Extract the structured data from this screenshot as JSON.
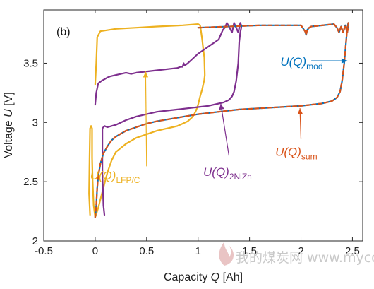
{
  "chart_data": {
    "type": "line",
    "panel_label": "(b)",
    "xlabel": {
      "prefix": "Capacity ",
      "symbol": "Q",
      "unit": " [Ah]"
    },
    "ylabel": {
      "prefix": "Voltage ",
      "symbol": "U",
      "unit": " [V]"
    },
    "xlim": [
      -0.5,
      2.6
    ],
    "ylim": [
      2,
      3.95
    ],
    "xticks": [
      -0.5,
      0,
      0.5,
      1,
      1.5,
      2,
      2.5
    ],
    "xtick_labels": [
      "-0.5",
      "0",
      "0.5",
      "1",
      "1.5",
      "2",
      "2.5"
    ],
    "yticks": [
      2,
      2.5,
      3,
      3.5
    ],
    "ytick_labels": [
      "2",
      "2.5",
      "3",
      "3.5"
    ],
    "grid": false,
    "series": [
      {
        "name_main": "U(Q)",
        "name_sub": "LFP/C",
        "color": "#edb120",
        "dash": false,
        "x": [
          -0.05,
          -0.06,
          -0.055,
          -0.05,
          -0.04,
          -0.03,
          -0.03,
          -0.025,
          -0.015,
          0.0,
          0.03,
          0.08,
          0.12,
          0.16,
          0.2,
          0.3,
          0.4,
          0.5,
          0.6,
          0.7,
          0.75,
          0.8,
          0.85,
          0.9,
          0.95,
          0.98,
          1.0,
          1.02,
          1.04,
          1.05,
          1.06,
          1.065,
          1.06,
          1.05,
          1.04,
          1.03,
          1.02,
          1.0,
          0.85,
          0.6,
          0.4,
          0.2,
          0.05,
          0.02,
          0.01,
          0.0
        ],
        "y": [
          2.22,
          2.4,
          2.7,
          2.95,
          2.97,
          2.95,
          2.7,
          2.5,
          2.3,
          2.2,
          2.28,
          2.45,
          2.58,
          2.68,
          2.75,
          2.82,
          2.87,
          2.9,
          2.93,
          2.95,
          2.96,
          2.97,
          2.99,
          3.01,
          3.05,
          3.1,
          3.15,
          3.22,
          3.28,
          3.32,
          3.36,
          3.4,
          3.55,
          3.62,
          3.7,
          3.76,
          3.82,
          3.83,
          3.82,
          3.81,
          3.8,
          3.79,
          3.77,
          3.72,
          3.5,
          3.32
        ]
      },
      {
        "name_main": "U(Q)",
        "name_sub": "2NiZn",
        "color": "#7e2f8e",
        "dash": false,
        "x": [
          0.09,
          0.08,
          0.075,
          0.07,
          0.07,
          0.07,
          0.09,
          0.12,
          0.16,
          0.2,
          0.3,
          0.4,
          0.5,
          0.6,
          0.7,
          0.8,
          0.9,
          1.0,
          1.1,
          1.2,
          1.25,
          1.3,
          1.33,
          1.35,
          1.37,
          1.39,
          1.4,
          1.41,
          1.42,
          1.42,
          1.41,
          1.39,
          1.37,
          1.35,
          1.33,
          1.3,
          1.28,
          1.26,
          1.24,
          1.22,
          1.2,
          1.0,
          0.9,
          0.87,
          0.86,
          0.85,
          0.83,
          0.8,
          0.6,
          0.4,
          0.35,
          0.3,
          0.2,
          0.15,
          0.12,
          0.1,
          0.06,
          0.03,
          0.01,
          0.0
        ],
        "y": [
          2.22,
          2.3,
          2.45,
          2.55,
          2.7,
          2.95,
          2.97,
          2.96,
          2.97,
          2.98,
          3.02,
          3.05,
          3.07,
          3.09,
          3.1,
          3.11,
          3.12,
          3.13,
          3.14,
          3.16,
          3.17,
          3.19,
          3.22,
          3.26,
          3.35,
          3.5,
          3.68,
          3.76,
          3.8,
          3.82,
          3.84,
          3.76,
          3.8,
          3.84,
          3.76,
          3.81,
          3.84,
          3.8,
          3.78,
          3.74,
          3.7,
          3.58,
          3.5,
          3.48,
          3.5,
          3.47,
          3.47,
          3.46,
          3.44,
          3.42,
          3.41,
          3.42,
          3.4,
          3.39,
          3.38,
          3.37,
          3.35,
          3.33,
          3.25,
          3.15
        ]
      },
      {
        "name_main": "U(Q)",
        "name_sub": "mod",
        "color": "#0072bd",
        "dash": false,
        "x": [
          0.0,
          0.01,
          0.02,
          0.03,
          0.05,
          0.08,
          0.12,
          0.16,
          0.2,
          0.3,
          0.4,
          0.5,
          0.6,
          0.8,
          1.0,
          1.2,
          1.4,
          1.6,
          1.8,
          2.0,
          2.2,
          2.3,
          2.35,
          2.38,
          2.4,
          2.42,
          2.44,
          2.45,
          2.46,
          2.46,
          2.45,
          2.43,
          2.41,
          2.39,
          2.37,
          2.35,
          2.32,
          2.1,
          2.08,
          2.06,
          2.05,
          2.04,
          2.0,
          1.6,
          1.0
        ],
        "y": [
          2.2,
          2.3,
          2.45,
          2.55,
          2.65,
          2.74,
          2.8,
          2.85,
          2.88,
          2.93,
          2.96,
          2.99,
          3.01,
          3.04,
          3.07,
          3.09,
          3.11,
          3.12,
          3.13,
          3.14,
          3.16,
          3.18,
          3.21,
          3.26,
          3.35,
          3.5,
          3.7,
          3.8,
          3.84,
          3.81,
          3.76,
          3.82,
          3.76,
          3.81,
          3.76,
          3.8,
          3.83,
          3.81,
          3.8,
          3.78,
          3.74,
          3.77,
          3.82,
          3.82,
          3.8
        ]
      },
      {
        "name_main": "U(Q)",
        "name_sub": "sum",
        "color": "#d95319",
        "dash": true,
        "x": [
          0.0,
          0.01,
          0.02,
          0.03,
          0.05,
          0.08,
          0.12,
          0.16,
          0.2,
          0.3,
          0.4,
          0.5,
          0.6,
          0.8,
          1.0,
          1.2,
          1.4,
          1.6,
          1.8,
          2.0,
          2.2,
          2.3,
          2.35,
          2.38,
          2.4,
          2.42,
          2.44,
          2.45,
          2.46,
          2.46,
          2.45,
          2.43,
          2.41,
          2.39,
          2.37,
          2.35,
          2.32,
          2.1,
          2.08,
          2.06,
          2.05,
          2.04,
          2.0,
          1.6,
          1.0
        ],
        "y": [
          2.2,
          2.3,
          2.45,
          2.55,
          2.65,
          2.74,
          2.8,
          2.85,
          2.88,
          2.93,
          2.96,
          2.99,
          3.01,
          3.04,
          3.07,
          3.09,
          3.11,
          3.12,
          3.13,
          3.14,
          3.16,
          3.18,
          3.21,
          3.26,
          3.35,
          3.5,
          3.7,
          3.8,
          3.84,
          3.81,
          3.76,
          3.82,
          3.76,
          3.81,
          3.76,
          3.8,
          3.83,
          3.81,
          3.8,
          3.78,
          3.74,
          3.77,
          3.82,
          3.82,
          3.8
        ]
      }
    ],
    "annotations": [
      {
        "id": "lfp",
        "main": "U(Q)",
        "sub": "LFP/C",
        "color": "#edb120",
        "text_at": [
          -0.05,
          2.52
        ],
        "arrow_from": [
          0.5,
          2.63
        ],
        "arrow_to": [
          0.49,
          3.43
        ]
      },
      {
        "id": "nizn",
        "main": "U(Q)",
        "sub": "2NiZn",
        "color": "#7e2f8e",
        "text_at": [
          1.05,
          2.55
        ],
        "arrow_from": [
          1.3,
          2.72
        ],
        "arrow_to": [
          1.22,
          3.16
        ]
      },
      {
        "id": "sum",
        "main": "U(Q)",
        "sub": "sum",
        "color": "#d95319",
        "text_at": [
          1.75,
          2.72
        ],
        "arrow_from": [
          2.0,
          2.86
        ],
        "arrow_to": [
          1.99,
          3.12
        ]
      },
      {
        "id": "mod",
        "main": "U(Q)",
        "sub": "mod",
        "color": "#0072bd",
        "text_at": [
          1.8,
          3.48
        ],
        "arrow_from": [
          2.1,
          3.52
        ],
        "arrow_to": [
          2.45,
          3.52
        ]
      }
    ]
  },
  "watermark": "我的煤炭网 www.mycoal.cn"
}
